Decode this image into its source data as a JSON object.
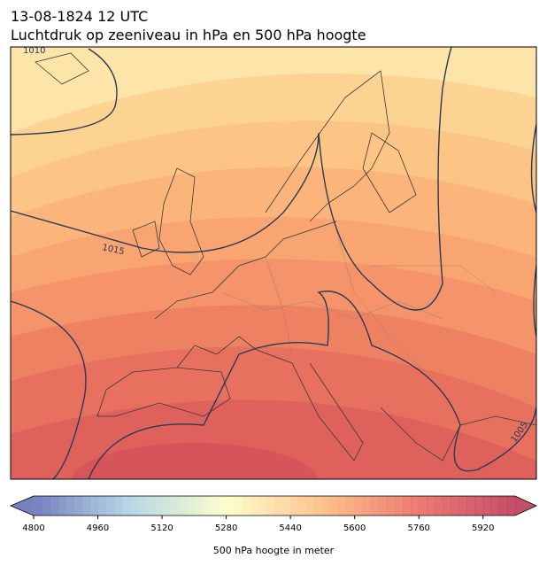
{
  "header": {
    "date": "13-08-1824 12 UTC",
    "subtitle": "Luchtdruk op zeeniveau in hPa en 500 hPa hoogte"
  },
  "map": {
    "isobar_labels": [
      1010,
      1015,
      1005
    ]
  },
  "colorbar": {
    "label": "500 hPa hoogte in meter",
    "range": [
      4800,
      6000
    ],
    "ticks": [
      4800,
      4960,
      5120,
      5280,
      5440,
      5600,
      5760,
      5920
    ]
  }
}
